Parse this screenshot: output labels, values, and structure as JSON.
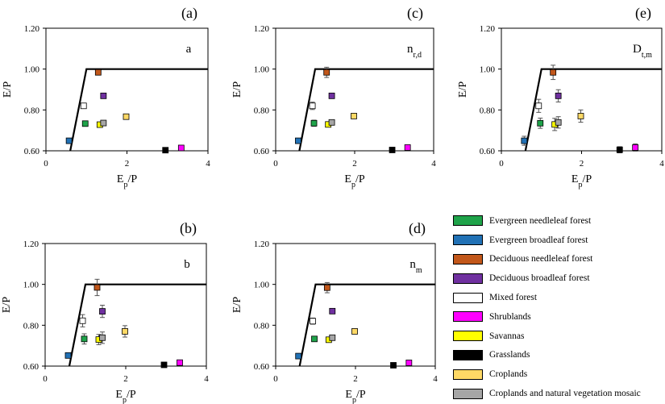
{
  "categories": [
    {
      "name": "Evergreen needleleaf forest",
      "color": "#1fa34a"
    },
    {
      "name": "Evergreen broadleaf forest",
      "color": "#2171b5"
    },
    {
      "name": "Deciduous needleleaf forest",
      "color": "#c2571a"
    },
    {
      "name": "Deciduous broadleaf forest",
      "color": "#7030a0"
    },
    {
      "name": "Mixed forest",
      "color": "#ffffff"
    },
    {
      "name": "Shrublands",
      "color": "#ff00ff"
    },
    {
      "name": "Savannas",
      "color": "#ffff00"
    },
    {
      "name": "Grasslands",
      "color": "#000000"
    },
    {
      "name": "Croplands",
      "color": "#ffd966"
    },
    {
      "name": "Croplands and natural vegetation mosaic",
      "color": "#a6a6a6"
    }
  ],
  "chart_data": [
    {
      "type": "scatter",
      "panel_label": "(a)",
      "inner_label": "a",
      "inner_sub": "",
      "xlabel": "Ep/P",
      "ylabel": "E/P",
      "xlim": [
        0,
        4
      ],
      "ylim": [
        0.6,
        1.2
      ],
      "xticks": [
        "0",
        "2",
        "4"
      ],
      "yticks": [
        "0.60",
        "0.80",
        "1.00",
        "1.20"
      ],
      "limit_line": [
        [
          0.6,
          0.6
        ],
        [
          1.0,
          1.0
        ],
        [
          4.0,
          1.0
        ]
      ],
      "points": [
        {
          "category": "Evergreen needleleaf forest",
          "x": 0.97,
          "y": 0.733,
          "err": 0
        },
        {
          "category": "Evergreen broadleaf forest",
          "x": 0.57,
          "y": 0.649,
          "err": 0
        },
        {
          "category": "Deciduous needleleaf forest",
          "x": 1.29,
          "y": 0.984,
          "err": 0
        },
        {
          "category": "Deciduous broadleaf forest",
          "x": 1.42,
          "y": 0.869,
          "err": 0
        },
        {
          "category": "Mixed forest",
          "x": 0.93,
          "y": 0.82,
          "err": 0
        },
        {
          "category": "Shrublands",
          "x": 3.34,
          "y": 0.614,
          "err": 0
        },
        {
          "category": "Savannas",
          "x": 1.33,
          "y": 0.728,
          "err": 0
        },
        {
          "category": "Grasslands",
          "x": 2.95,
          "y": 0.603,
          "err": 0
        },
        {
          "category": "Croplands",
          "x": 1.98,
          "y": 0.767,
          "err": 0
        },
        {
          "category": "Croplands and natural vegetation mosaic",
          "x": 1.42,
          "y": 0.736,
          "err": 0
        }
      ]
    },
    {
      "type": "scatter",
      "panel_label": "(c)",
      "inner_label": "n",
      "inner_sub": "r,d",
      "xlabel": "Ep/P",
      "ylabel": "E/P",
      "xlim": [
        0,
        4
      ],
      "ylim": [
        0.6,
        1.2
      ],
      "xticks": [
        "0",
        "2",
        "4"
      ],
      "yticks": [
        "0.60",
        "0.80",
        "1.00",
        "1.20"
      ],
      "limit_line": [
        [
          0.6,
          0.6
        ],
        [
          1.0,
          1.0
        ],
        [
          4.0,
          1.0
        ]
      ],
      "points": [
        {
          "category": "Evergreen needleleaf forest",
          "x": 0.97,
          "y": 0.735,
          "err": 0.015
        },
        {
          "category": "Evergreen broadleaf forest",
          "x": 0.57,
          "y": 0.649,
          "err": 0.01
        },
        {
          "category": "Deciduous needleleaf forest",
          "x": 1.29,
          "y": 0.984,
          "err": 0.025
        },
        {
          "category": "Deciduous broadleaf forest",
          "x": 1.42,
          "y": 0.869,
          "err": 0.01
        },
        {
          "category": "Mixed forest",
          "x": 0.93,
          "y": 0.82,
          "err": 0.018
        },
        {
          "category": "Shrublands",
          "x": 3.34,
          "y": 0.616,
          "err": 0.008
        },
        {
          "category": "Savannas",
          "x": 1.33,
          "y": 0.729,
          "err": 0.01
        },
        {
          "category": "Grasslands",
          "x": 2.95,
          "y": 0.604,
          "err": 0.006
        },
        {
          "category": "Croplands",
          "x": 1.98,
          "y": 0.77,
          "err": 0.012
        },
        {
          "category": "Croplands and natural vegetation mosaic",
          "x": 1.42,
          "y": 0.739,
          "err": 0.01
        }
      ]
    },
    {
      "type": "scatter",
      "panel_label": "(e)",
      "inner_label": "D",
      "inner_sub": "t,m",
      "xlabel": "Ep/P",
      "ylabel": "E/P",
      "xlim": [
        0,
        4
      ],
      "ylim": [
        0.6,
        1.2
      ],
      "xticks": [
        "0",
        "2",
        "4"
      ],
      "yticks": [
        "0.60",
        "0.80",
        "1.00",
        "1.20"
      ],
      "limit_line": [
        [
          0.6,
          0.6
        ],
        [
          1.0,
          1.0
        ],
        [
          4.0,
          1.0
        ]
      ],
      "points": [
        {
          "category": "Evergreen needleleaf forest",
          "x": 0.97,
          "y": 0.735,
          "err": 0.025
        },
        {
          "category": "Evergreen broadleaf forest",
          "x": 0.57,
          "y": 0.649,
          "err": 0.022
        },
        {
          "category": "Deciduous needleleaf forest",
          "x": 1.29,
          "y": 0.984,
          "err": 0.035
        },
        {
          "category": "Deciduous broadleaf forest",
          "x": 1.42,
          "y": 0.869,
          "err": 0.03
        },
        {
          "category": "Mixed forest",
          "x": 0.93,
          "y": 0.82,
          "err": 0.032
        },
        {
          "category": "Shrublands",
          "x": 3.34,
          "y": 0.616,
          "err": 0.018
        },
        {
          "category": "Savannas",
          "x": 1.33,
          "y": 0.729,
          "err": 0.03
        },
        {
          "category": "Grasslands",
          "x": 2.95,
          "y": 0.605,
          "err": 0.015
        },
        {
          "category": "Croplands",
          "x": 1.98,
          "y": 0.77,
          "err": 0.03
        },
        {
          "category": "Croplands and natural vegetation mosaic",
          "x": 1.42,
          "y": 0.739,
          "err": 0.028
        }
      ]
    },
    {
      "type": "scatter",
      "panel_label": "(b)",
      "inner_label": "b",
      "inner_sub": "",
      "xlabel": "Ep/P",
      "ylabel": "E/P",
      "xlim": [
        0,
        4
      ],
      "ylim": [
        0.6,
        1.2
      ],
      "xticks": [
        "0",
        "2",
        "4"
      ],
      "yticks": [
        "0.60",
        "0.80",
        "1.00",
        "1.20"
      ],
      "limit_line": [
        [
          0.6,
          0.6
        ],
        [
          1.0,
          1.0
        ],
        [
          4.0,
          1.0
        ]
      ],
      "points": [
        {
          "category": "Evergreen needleleaf forest",
          "x": 0.97,
          "y": 0.733,
          "err": 0.025
        },
        {
          "category": "Evergreen broadleaf forest",
          "x": 0.57,
          "y": 0.652,
          "err": 0.012
        },
        {
          "category": "Deciduous needleleaf forest",
          "x": 1.29,
          "y": 0.985,
          "err": 0.04
        },
        {
          "category": "Deciduous broadleaf forest",
          "x": 1.42,
          "y": 0.868,
          "err": 0.03
        },
        {
          "category": "Mixed forest",
          "x": 0.93,
          "y": 0.822,
          "err": 0.03
        },
        {
          "category": "Shrublands",
          "x": 3.34,
          "y": 0.617,
          "err": 0.012
        },
        {
          "category": "Savannas",
          "x": 1.33,
          "y": 0.73,
          "err": 0.025
        },
        {
          "category": "Grasslands",
          "x": 2.95,
          "y": 0.606,
          "err": 0.012
        },
        {
          "category": "Croplands",
          "x": 1.98,
          "y": 0.77,
          "err": 0.028
        },
        {
          "category": "Croplands and natural vegetation mosaic",
          "x": 1.42,
          "y": 0.739,
          "err": 0.028
        }
      ]
    },
    {
      "type": "scatter",
      "panel_label": "(d)",
      "inner_label": "n",
      "inner_sub": "m",
      "xlabel": "Ep/P",
      "ylabel": "E/P",
      "xlim": [
        0,
        4
      ],
      "ylim": [
        0.6,
        1.2
      ],
      "xticks": [
        "0",
        "2",
        "4"
      ],
      "yticks": [
        "0.60",
        "0.80",
        "1.00",
        "1.20"
      ],
      "limit_line": [
        [
          0.6,
          0.6
        ],
        [
          1.0,
          1.0
        ],
        [
          4.0,
          1.0
        ]
      ],
      "points": [
        {
          "category": "Evergreen needleleaf forest",
          "x": 0.97,
          "y": 0.733,
          "err": 0.012
        },
        {
          "category": "Evergreen broadleaf forest",
          "x": 0.57,
          "y": 0.649,
          "err": 0.008
        },
        {
          "category": "Deciduous needleleaf forest",
          "x": 1.29,
          "y": 0.984,
          "err": 0.025
        },
        {
          "category": "Deciduous broadleaf forest",
          "x": 1.42,
          "y": 0.869,
          "err": 0.008
        },
        {
          "category": "Mixed forest",
          "x": 0.93,
          "y": 0.82,
          "err": 0.015
        },
        {
          "category": "Shrublands",
          "x": 3.34,
          "y": 0.616,
          "err": 0.006
        },
        {
          "category": "Savannas",
          "x": 1.33,
          "y": 0.729,
          "err": 0.01
        },
        {
          "category": "Grasslands",
          "x": 2.95,
          "y": 0.604,
          "err": 0.006
        },
        {
          "category": "Croplands",
          "x": 1.98,
          "y": 0.77,
          "err": 0.01
        },
        {
          "category": "Croplands and natural vegetation mosaic",
          "x": 1.42,
          "y": 0.739,
          "err": 0.008
        }
      ]
    }
  ]
}
